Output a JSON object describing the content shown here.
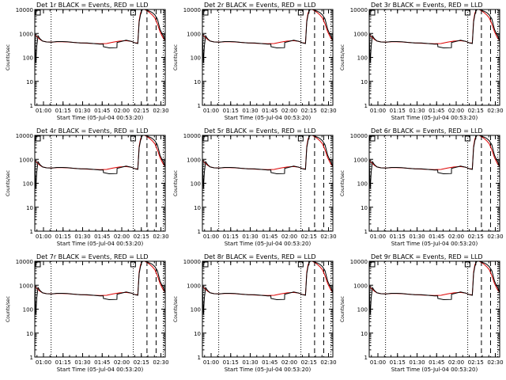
{
  "figure": {
    "background": "#ffffff",
    "axis_color": "#000000"
  },
  "chart_data": {
    "type": "line",
    "common": {
      "xlabel": "Start Time (05-Jul-04 00:53:20)",
      "ylabel": "Counts/sec",
      "y_scale": "log",
      "ylim": [
        1,
        10000
      ],
      "y_ticks": [
        1,
        10,
        100,
        1000,
        10000
      ],
      "y_tick_labels": [
        "1",
        "10",
        "100",
        "1000",
        "10000"
      ],
      "x_unit": "minutes after 00:53:20",
      "xlim": [
        0,
        100
      ],
      "x_ticks": [
        6.67,
        21.67,
        36.67,
        51.67,
        66.67,
        81.67,
        96.67
      ],
      "x_tick_labels": [
        "01:00",
        "01:15",
        "01:30",
        "01:45",
        "02:00",
        "02:15",
        "02:30"
      ],
      "x_minor_tick_step_minutes": 5,
      "dotted_vlines": [
        12.5,
        75.5,
        98.5
      ],
      "dashed_vlines": [
        86,
        93
      ],
      "legend_text": "BLACK = Events, RED = LLD",
      "series_names": [
        "Events",
        "LLD"
      ],
      "series_colors": [
        "#000000",
        "#dd0000"
      ]
    },
    "events_curve": {
      "x": [
        0,
        0.8,
        1.5,
        2.5,
        4,
        6,
        9,
        13,
        17,
        21,
        25,
        30,
        35,
        40,
        45,
        50,
        52.5,
        52.6,
        57,
        63,
        63.1,
        66,
        70,
        74,
        77,
        79,
        80,
        81,
        82,
        83.5,
        85,
        86.5,
        88,
        90,
        92,
        94,
        96,
        97.5,
        99,
        100
      ],
      "y": [
        1000,
        60,
        300,
        800,
        600,
        480,
        440,
        430,
        460,
        460,
        450,
        420,
        400,
        400,
        380,
        360,
        360,
        280,
        250,
        255,
        420,
        460,
        520,
        470,
        400,
        380,
        3000,
        6000,
        9000,
        11000,
        9800,
        9000,
        8500,
        7500,
        6000,
        4000,
        1500,
        1000,
        700,
        500
      ]
    },
    "lld_curve": {
      "x": [
        0,
        2,
        4,
        6,
        9,
        13,
        17,
        21,
        25,
        30,
        35,
        40,
        45,
        50,
        55,
        60,
        65,
        70,
        74,
        77,
        79,
        80,
        81,
        82,
        83.5,
        85,
        86.5,
        88,
        90,
        92,
        94,
        96,
        98,
        100
      ],
      "y": [
        900,
        700,
        560,
        480,
        440,
        430,
        450,
        450,
        440,
        420,
        400,
        390,
        380,
        370,
        380,
        430,
        480,
        500,
        470,
        400,
        400,
        3500,
        7000,
        9500,
        10500,
        9500,
        8500,
        7500,
        6000,
        4500,
        2500,
        1200,
        700,
        500
      ]
    },
    "panels": [
      {
        "title": "Det 1r BLACK = Events, RED = LLD",
        "detector": "1r"
      },
      {
        "title": "Det 2r BLACK = Events, RED = LLD",
        "detector": "2r"
      },
      {
        "title": "Det 3r BLACK = Events, RED = LLD",
        "detector": "3r"
      },
      {
        "title": "Det 4r BLACK = Events, RED = LLD",
        "detector": "4r"
      },
      {
        "title": "Det 5r BLACK = Events, RED = LLD",
        "detector": "5r"
      },
      {
        "title": "Det 6r BLACK = Events, RED = LLD",
        "detector": "6r"
      },
      {
        "title": "Det 7r BLACK = Events, RED = LLD",
        "detector": "7r"
      },
      {
        "title": "Det 8r BLACK = Events, RED = LLD",
        "detector": "8r"
      },
      {
        "title": "Det 9r BLACK = Events, RED = LLD",
        "detector": "9r"
      }
    ]
  }
}
